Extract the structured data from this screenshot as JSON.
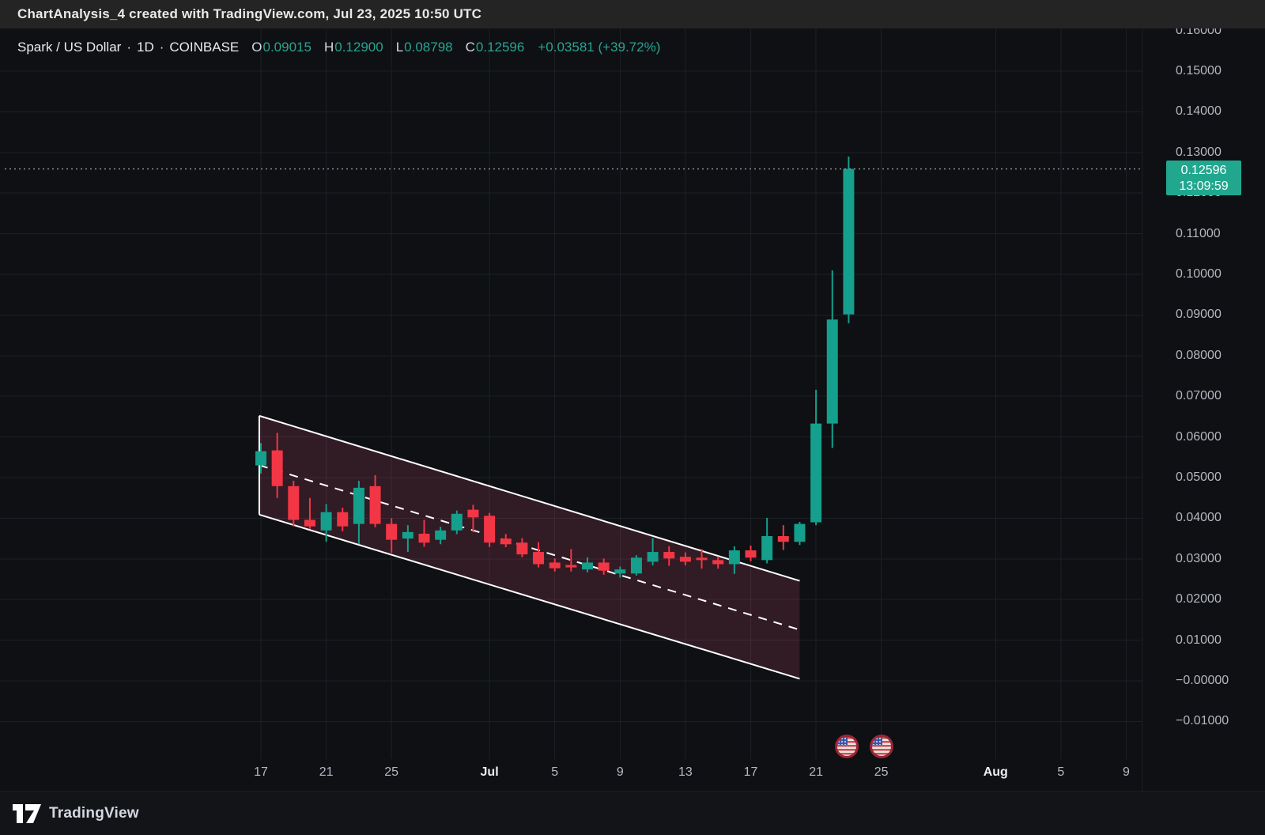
{
  "topbar": {
    "attribution": "ChartAnalysis_4 created with TradingView.com, Jul 23, 2025 10:50 UTC"
  },
  "legend": {
    "symbol": "Spark / US Dollar",
    "sep": "·",
    "interval": "1D",
    "exchange": "COINBASE",
    "ohlc": [
      {
        "label": "O",
        "value": "0.09015"
      },
      {
        "label": "H",
        "value": "0.12900"
      },
      {
        "label": "L",
        "value": "0.08798"
      },
      {
        "label": "C",
        "value": "0.12596"
      }
    ],
    "change": "+0.03581 (+39.72%)"
  },
  "price_label": {
    "value": "0.12596",
    "countdown": "13:09:59"
  },
  "price_axis_labels": [
    {
      "p": 0.16,
      "text": "0.16000"
    },
    {
      "p": 0.15,
      "text": "0.15000"
    },
    {
      "p": 0.14,
      "text": "0.14000"
    },
    {
      "p": 0.13,
      "text": "0.13000"
    },
    {
      "p": 0.12,
      "text": "0.12000"
    },
    {
      "p": 0.11,
      "text": "0.11000"
    },
    {
      "p": 0.1,
      "text": "0.10000"
    },
    {
      "p": 0.09,
      "text": "0.09000"
    },
    {
      "p": 0.08,
      "text": "0.08000"
    },
    {
      "p": 0.07,
      "text": "0.07000"
    },
    {
      "p": 0.06,
      "text": "0.06000"
    },
    {
      "p": 0.05,
      "text": "0.05000"
    },
    {
      "p": 0.04,
      "text": "0.04000"
    },
    {
      "p": 0.03,
      "text": "0.03000"
    },
    {
      "p": 0.02,
      "text": "0.02000"
    },
    {
      "p": 0.01,
      "text": "0.01000"
    },
    {
      "p": 0.0,
      "text": "−0.00000"
    },
    {
      "p": -0.01,
      "text": "−0.01000"
    }
  ],
  "chart_data": {
    "type": "candlestick",
    "symbol": "Spark / US Dollar",
    "interval": "1D",
    "exchange": "COINBASE",
    "last_candle": {
      "open": 0.09015,
      "high": 0.129,
      "low": 0.08798,
      "close": 0.12596,
      "change": "+0.03581",
      "change_pct": "+39.72%"
    },
    "price_axis": {
      "min": -0.01,
      "max": 0.16,
      "tick_step": 0.01
    },
    "time_axis_ticks": [
      {
        "label": "17",
        "i": 0,
        "month": false
      },
      {
        "label": "21",
        "i": 4,
        "month": false
      },
      {
        "label": "25",
        "i": 8,
        "month": false
      },
      {
        "label": "Jul",
        "i": 14,
        "month": true
      },
      {
        "label": "5",
        "i": 18,
        "month": false
      },
      {
        "label": "9",
        "i": 22,
        "month": false
      },
      {
        "label": "13",
        "i": 26,
        "month": false
      },
      {
        "label": "17",
        "i": 30,
        "month": false
      },
      {
        "label": "21",
        "i": 34,
        "month": false
      },
      {
        "label": "25",
        "i": 38,
        "month": false
      },
      {
        "label": "Aug",
        "i": 45,
        "month": true
      },
      {
        "label": "5",
        "i": 49,
        "month": false
      },
      {
        "label": "9",
        "i": 53,
        "month": false
      }
    ],
    "candles": [
      [
        "Jun 17",
        0.053,
        0.0585,
        0.051,
        0.0565
      ],
      [
        "Jun 18",
        0.0567,
        0.061,
        0.045,
        0.0479
      ],
      [
        "Jun 19",
        0.0479,
        0.0492,
        0.038,
        0.0396
      ],
      [
        "Jun 20",
        0.0396,
        0.045,
        0.0374,
        0.038
      ],
      [
        "Jun 21",
        0.037,
        0.0435,
        0.0342,
        0.0415
      ],
      [
        "Jun 22",
        0.0415,
        0.0426,
        0.0368,
        0.038
      ],
      [
        "Jun 23",
        0.0386,
        0.0492,
        0.0336,
        0.0475
      ],
      [
        "Jun 24",
        0.0479,
        0.0506,
        0.0378,
        0.0386
      ],
      [
        "Jun 25",
        0.0386,
        0.04,
        0.0315,
        0.0347
      ],
      [
        "Jun 26",
        0.035,
        0.0383,
        0.0317,
        0.0366
      ],
      [
        "Jun 27",
        0.0362,
        0.0396,
        0.033,
        0.034
      ],
      [
        "Jun 28",
        0.0347,
        0.0379,
        0.0336,
        0.037
      ],
      [
        "Jun 29",
        0.037,
        0.0419,
        0.0361,
        0.0411
      ],
      [
        "Jun 30",
        0.0421,
        0.0433,
        0.0366,
        0.0402
      ],
      [
        "Jul 1",
        0.0406,
        0.0413,
        0.0329,
        0.034
      ],
      [
        "Jul 2",
        0.035,
        0.0361,
        0.0329,
        0.0336
      ],
      [
        "Jul 3",
        0.034,
        0.0351,
        0.0304,
        0.0311
      ],
      [
        "Jul 4",
        0.0317,
        0.0341,
        0.0279,
        0.0287
      ],
      [
        "Jul 5",
        0.0291,
        0.0301,
        0.0269,
        0.0277
      ],
      [
        "Jul 6",
        0.0285,
        0.0324,
        0.0269,
        0.0279
      ],
      [
        "Jul 7",
        0.0274,
        0.0304,
        0.0267,
        0.0291
      ],
      [
        "Jul 8",
        0.0291,
        0.0301,
        0.0261,
        0.0271
      ],
      [
        "Jul 9",
        0.0264,
        0.0281,
        0.0254,
        0.0274
      ],
      [
        "Jul 10",
        0.0264,
        0.0309,
        0.0259,
        0.0303
      ],
      [
        "Jul 11",
        0.0293,
        0.0351,
        0.0284,
        0.0317
      ],
      [
        "Jul 12",
        0.0317,
        0.0331,
        0.0283,
        0.0301
      ],
      [
        "Jul 13",
        0.0305,
        0.0316,
        0.0284,
        0.0293
      ],
      [
        "Jul 14",
        0.0303,
        0.0324,
        0.0276,
        0.0297
      ],
      [
        "Jul 15",
        0.0297,
        0.0306,
        0.0276,
        0.0287
      ],
      [
        "Jul 16",
        0.0287,
        0.0331,
        0.0263,
        0.0321
      ],
      [
        "Jul 17",
        0.0321,
        0.0333,
        0.0294,
        0.0303
      ],
      [
        "Jul 18",
        0.0297,
        0.0401,
        0.0289,
        0.0356
      ],
      [
        "Jul 19",
        0.0356,
        0.0383,
        0.0322,
        0.0342
      ],
      [
        "Jul 20",
        0.0342,
        0.0391,
        0.0334,
        0.0386
      ],
      [
        "Jul 21",
        0.039,
        0.0716,
        0.0383,
        0.0633
      ],
      [
        "Jul 22",
        0.0633,
        0.101,
        0.0573,
        0.0889
      ],
      [
        "Jul 23",
        0.09015,
        0.129,
        0.08798,
        0.12596
      ]
    ],
    "annotations": {
      "descending_channel": {
        "start_day_index": -0.1,
        "end_day_index": 33.0,
        "top_start_price": 0.0652,
        "top_end_price": 0.0246,
        "bottom_start_price": 0.0409,
        "bottom_end_price": 0.0005,
        "fill": "rgba(236,85,130,0.16)",
        "line_color": "#ffffff",
        "median_style": "dashed"
      },
      "current_price_line": 0.12596
    },
    "colors": {
      "up": "#14a08c",
      "down": "#f23645",
      "grid": "#1c1f25",
      "price_line": "#9598a1"
    },
    "events": [
      {
        "icon": "us-flag",
        "day_index": 35.9
      },
      {
        "icon": "us-flag",
        "day_index": 38.0
      }
    ]
  },
  "footer": {
    "brand": "TradingView"
  }
}
